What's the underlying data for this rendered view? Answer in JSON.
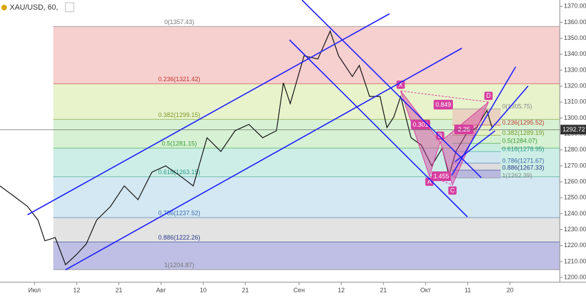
{
  "chart_data": {
    "type": "line",
    "title": "XAU/USD, 60,",
    "xlim": [
      -9,
      137
    ],
    "ylim": [
      1197,
      1374
    ],
    "xticks": [
      {
        "value": 0,
        "label": "Июл"
      },
      {
        "value": 11,
        "label": "12"
      },
      {
        "value": 22,
        "label": "21"
      },
      {
        "value": 33,
        "label": "Авг"
      },
      {
        "value": 44,
        "label": "10"
      },
      {
        "value": 55,
        "label": "21"
      },
      {
        "value": 69,
        "label": "Сен"
      },
      {
        "value": 80,
        "label": "12"
      },
      {
        "value": 91,
        "label": "21"
      },
      {
        "value": 102,
        "label": "Окт"
      },
      {
        "value": 113,
        "label": "11"
      },
      {
        "value": 124,
        "label": "20"
      }
    ],
    "yticks": [
      {
        "value": 1200,
        "label": "1200.00"
      },
      {
        "value": 1210,
        "label": "1210.00"
      },
      {
        "value": 1220,
        "label": "1220.00"
      },
      {
        "value": 1230,
        "label": "1230.00"
      },
      {
        "value": 1240,
        "label": "1240.00"
      },
      {
        "value": 1250,
        "label": "1250.00"
      },
      {
        "value": 1260,
        "label": "1260.00"
      },
      {
        "value": 1270,
        "label": "1270.00"
      },
      {
        "value": 1280,
        "label": "1280.00"
      },
      {
        "value": 1290,
        "label": "1290.00"
      },
      {
        "value": 1300,
        "label": "1300.00"
      },
      {
        "value": 1310,
        "label": "1310.00"
      },
      {
        "value": 1320,
        "label": "1320.00"
      },
      {
        "value": 1330,
        "label": "1330.00"
      },
      {
        "value": 1340,
        "label": "1340.00"
      },
      {
        "value": 1350,
        "label": "1350.00"
      },
      {
        "value": 1360,
        "label": "1360.00"
      },
      {
        "value": 1370,
        "label": "1370.00"
      }
    ],
    "price": {
      "color": "#111111",
      "x": [
        -9,
        -5.4,
        -1.8,
        0.9,
        2.7,
        5.4,
        8.1,
        10.8,
        13.5,
        16.2,
        19.8,
        23.4,
        27,
        30.6,
        34.2,
        37.8,
        41.4,
        45,
        48.6,
        52.3,
        55.9,
        59.5,
        63.1,
        64.9,
        66.7,
        70.3,
        73.9,
        77.1,
        79.3,
        82.9,
        84.7,
        87.4,
        90.1,
        91.9,
        93.7,
        95.5,
        98.2,
        100.9,
        103.6,
        106.3,
        108.1,
        109.9,
        112.6,
        115.3,
        118,
        119.3
      ],
      "values": [
        1257.4,
        1251,
        1244.5,
        1236,
        1223,
        1225,
        1208,
        1214,
        1221,
        1236,
        1244.5,
        1257.4,
        1248.8,
        1266,
        1270,
        1264,
        1257.4,
        1287.6,
        1279,
        1292,
        1296,
        1287.6,
        1292,
        1322,
        1309,
        1339,
        1337,
        1354.5,
        1339,
        1326,
        1333,
        1313.5,
        1313.5,
        1294,
        1300.6,
        1313.5,
        1287.6,
        1283,
        1270,
        1281,
        1264,
        1279,
        1290,
        1294,
        1304.8,
        1294
      ]
    },
    "last_price": 1292.72,
    "fib_main": {
      "x": [
        4.9,
        137
      ],
      "levels": [
        {
          "label": "0(1357.43)",
          "value": 1357.43,
          "color": "#777777",
          "fill": "#f6cfcf"
        },
        {
          "label": "0.236(1321.42)",
          "value": 1321.42,
          "color": "#c0392b",
          "fill": "#e8f3cc"
        },
        {
          "label": "0.382(1299.15)",
          "value": 1299.15,
          "color": "#7a9a2a",
          "fill": "#d6f1d3"
        },
        {
          "label": "0.5(1281.15)",
          "value": 1281.15,
          "color": "#3a9a3a",
          "fill": "#cdeee6"
        },
        {
          "label": "0.618(1263.15)",
          "value": 1263.15,
          "color": "#2a9a8a",
          "fill": "#d3e8f3"
        },
        {
          "label": "0.786(1237.52)",
          "value": 1237.52,
          "color": "#3a6aa8",
          "fill": "#e3e3e3"
        },
        {
          "label": "0.886(1222.26)",
          "value": 1222.26,
          "color": "#2a3a8a",
          "fill": "#bfbfe5"
        },
        {
          "label": "1(1204.87)",
          "value": 1204.87,
          "color": "#777777",
          "fill": null
        }
      ]
    },
    "fib_pattern": {
      "x": [
        109,
        121.6
      ],
      "levels": [
        {
          "label": "0(1305.75)",
          "value": 1305.75,
          "color": "#888888",
          "fill": "#e9d2c0"
        },
        {
          "label": "0.236(1295.52)",
          "value": 1295.52,
          "color": "#c0392b",
          "fill": "#e5f0c5"
        },
        {
          "label": "0.382(1289.19)",
          "value": 1289.19,
          "color": "#7a9a2a",
          "fill": "#d3f0cf"
        },
        {
          "label": "0.5(1284.07)",
          "value": 1284.07,
          "color": "#3a9a3a",
          "fill": "#c9eee0"
        },
        {
          "label": "0.618(1278.95)",
          "value": 1278.95,
          "color": "#2a9a8a",
          "fill": "#cfe6f1"
        },
        {
          "label": "0.786(1271.67)",
          "value": 1271.67,
          "color": "#3a6aa8",
          "fill": "#dddddd"
        },
        {
          "label": "0.886(1267.33)",
          "value": 1267.33,
          "color": "#2a3a8a",
          "fill": "#b9b9e0"
        },
        {
          "label": "1(1262.39)",
          "value": 1262.39,
          "color": "#888888",
          "fill": null
        }
      ]
    },
    "pattern": {
      "color": "#d63fa0",
      "points": [
        {
          "label": "X",
          "x": 95.5,
          "y": 1317
        },
        {
          "label": "A",
          "x": 103,
          "y": 1263.5
        },
        {
          "label": "B",
          "x": 105.8,
          "y": 1285
        },
        {
          "label": "C",
          "x": 109,
          "y": 1258
        },
        {
          "label": "D",
          "x": 118.4,
          "y": 1310
        }
      ],
      "ratios": [
        0.849,
        0.301,
        1.455,
        2.25
      ]
    }
  }
}
